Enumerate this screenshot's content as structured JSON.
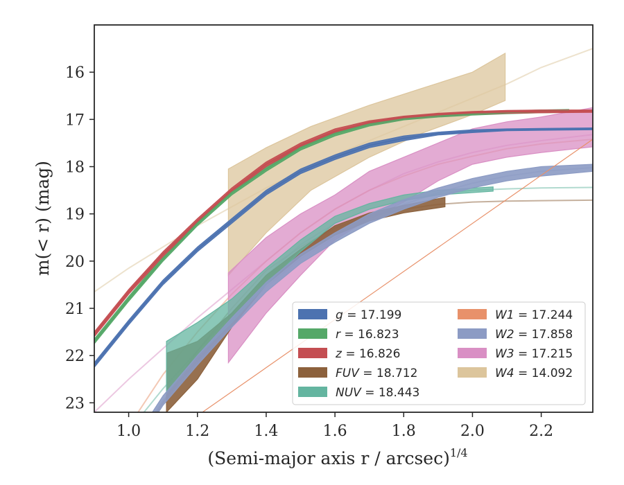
{
  "chart_data": {
    "type": "line",
    "title": "",
    "xlabel": "(Semi-major axis r / arcsec)",
    "xlabel_exponent": "1/4",
    "ylabel": "m(< r) (mag)",
    "xlim": [
      0.9,
      2.35
    ],
    "ylim": [
      23.2,
      15.0
    ],
    "y_inverted": true,
    "x_ticks": [
      "1.0",
      "1.2",
      "1.4",
      "1.6",
      "1.8",
      "2.0",
      "2.2"
    ],
    "y_ticks": [
      "16",
      "17",
      "18",
      "19",
      "20",
      "21",
      "22",
      "23"
    ],
    "grid": false,
    "legend_placement": "lower-right",
    "legend_columns": 2,
    "series": [
      {
        "name": "g",
        "label_value": "= 17.199",
        "color": "#4c72b0",
        "model": {
          "x": [
            0.9,
            1.0,
            1.1,
            1.2,
            1.3,
            1.4,
            1.5,
            1.6,
            1.7,
            1.8,
            1.9,
            2.0,
            2.1,
            2.2,
            2.35
          ],
          "y": [
            22.2,
            21.3,
            20.45,
            19.75,
            19.15,
            18.55,
            18.1,
            17.8,
            17.55,
            17.4,
            17.3,
            17.25,
            17.22,
            17.21,
            17.2
          ]
        },
        "band": {
          "x": [
            0.9,
            1.0,
            1.1,
            1.2,
            1.3,
            1.4,
            1.5,
            1.6,
            1.7,
            1.8,
            1.9,
            2.0,
            2.1,
            2.2,
            2.35
          ],
          "lo": [
            22.15,
            21.25,
            20.4,
            19.7,
            19.1,
            18.5,
            18.05,
            17.75,
            17.5,
            17.35,
            17.27,
            17.22,
            17.2,
            17.19,
            17.18
          ],
          "hi": [
            22.25,
            21.35,
            20.5,
            19.8,
            19.2,
            18.6,
            18.15,
            17.85,
            17.6,
            17.45,
            17.33,
            17.28,
            17.24,
            17.23,
            17.22
          ]
        }
      },
      {
        "name": "r",
        "label_value": "= 16.823",
        "color": "#55a868",
        "model": {
          "x": [
            0.9,
            1.0,
            1.1,
            1.2,
            1.3,
            1.4,
            1.5,
            1.6,
            1.7,
            1.8,
            1.9,
            2.0,
            2.1,
            2.2,
            2.28
          ],
          "y": [
            21.7,
            20.8,
            19.95,
            19.2,
            18.55,
            18.05,
            17.6,
            17.3,
            17.1,
            16.98,
            16.92,
            16.88,
            16.85,
            16.83,
            16.82
          ]
        },
        "band": {
          "x": [
            0.9,
            1.0,
            1.1,
            1.2,
            1.3,
            1.4,
            1.5,
            1.6,
            1.7,
            1.8,
            1.9,
            2.0,
            2.1,
            2.2,
            2.28
          ],
          "lo": [
            21.65,
            20.75,
            19.9,
            19.15,
            18.5,
            18.0,
            17.55,
            17.25,
            17.06,
            16.95,
            16.89,
            16.85,
            16.82,
            16.8,
            16.79
          ],
          "hi": [
            21.75,
            20.85,
            20.0,
            19.25,
            18.6,
            18.1,
            17.65,
            17.35,
            17.14,
            17.01,
            16.95,
            16.91,
            16.88,
            16.86,
            16.85
          ]
        }
      },
      {
        "name": "z",
        "label_value": "= 16.826",
        "color": "#c44e52",
        "model": {
          "x": [
            0.9,
            1.0,
            1.1,
            1.2,
            1.3,
            1.4,
            1.5,
            1.6,
            1.7,
            1.8,
            1.9,
            2.0,
            2.1,
            2.2,
            2.35
          ],
          "y": [
            21.55,
            20.65,
            19.85,
            19.15,
            18.5,
            17.95,
            17.55,
            17.25,
            17.07,
            16.96,
            16.9,
            16.86,
            16.84,
            16.83,
            16.82
          ]
        },
        "band": {
          "x": [
            0.9,
            1.0,
            1.1,
            1.2,
            1.3,
            1.4,
            1.5,
            1.6,
            1.7,
            1.8,
            1.9,
            2.0,
            2.1,
            2.2,
            2.35
          ],
          "lo": [
            21.5,
            20.6,
            19.8,
            19.1,
            18.45,
            17.9,
            17.5,
            17.2,
            17.03,
            16.93,
            16.87,
            16.83,
            16.81,
            16.8,
            16.8
          ],
          "hi": [
            21.6,
            20.7,
            19.9,
            19.2,
            18.55,
            18.0,
            17.6,
            17.3,
            17.11,
            16.99,
            16.93,
            16.89,
            16.87,
            16.86,
            16.85
          ]
        }
      },
      {
        "name": "FUV",
        "label_value": "= 18.712",
        "color": "#8c613c",
        "model": {
          "x": [
            0.9,
            1.0,
            1.1,
            1.2,
            1.3,
            1.4,
            1.5,
            1.6,
            1.7,
            1.8,
            1.9,
            2.0,
            2.1,
            2.2,
            2.35
          ],
          "y": [
            25.0,
            24.1,
            23.0,
            21.9,
            21.0,
            20.2,
            19.7,
            19.3,
            19.05,
            18.9,
            18.8,
            18.75,
            18.73,
            18.72,
            18.71
          ]
        },
        "band": {
          "x": [
            1.11,
            1.2,
            1.3,
            1.4,
            1.5,
            1.6,
            1.7,
            1.8,
            1.92
          ],
          "lo": [
            21.95,
            21.7,
            21.1,
            20.3,
            19.75,
            19.25,
            18.98,
            18.82,
            18.65
          ],
          "hi": [
            23.2,
            22.5,
            21.4,
            20.5,
            19.9,
            19.45,
            19.15,
            18.98,
            18.85
          ]
        }
      },
      {
        "name": "NUV",
        "label_value": "= 18.443",
        "color": "#64b5a0",
        "model": {
          "x": [
            0.9,
            1.0,
            1.1,
            1.2,
            1.3,
            1.4,
            1.5,
            1.6,
            1.7,
            1.8,
            1.9,
            2.0,
            2.1,
            2.2,
            2.35
          ],
          "y": [
            24.5,
            23.6,
            22.7,
            21.9,
            21.1,
            20.3,
            19.65,
            19.2,
            18.9,
            18.7,
            18.58,
            18.5,
            18.47,
            18.45,
            18.44
          ]
        },
        "band": {
          "x": [
            1.11,
            1.2,
            1.3,
            1.4,
            1.5,
            1.6,
            1.7,
            1.8,
            1.9,
            2.06
          ],
          "lo": [
            21.7,
            21.3,
            20.8,
            20.15,
            19.55,
            19.05,
            18.78,
            18.6,
            18.5,
            18.43
          ],
          "hi": [
            22.8,
            22.0,
            21.3,
            20.5,
            19.8,
            19.2,
            18.9,
            18.72,
            18.6,
            18.52
          ]
        }
      },
      {
        "name": "W1",
        "label_value": "= 17.244",
        "color": "#e8916a",
        "model": {
          "x": [
            0.9,
            1.0,
            1.1,
            1.2,
            1.3,
            1.4,
            1.5,
            1.6,
            1.7,
            1.8,
            1.9,
            2.0,
            2.1,
            2.2,
            2.35
          ],
          "y": [
            24.8,
            23.5,
            22.4,
            21.5,
            20.7,
            20.0,
            19.4,
            18.9,
            18.5,
            18.2,
            17.95,
            17.78,
            17.62,
            17.52,
            17.42
          ]
        },
        "band": {
          "x": [
            0.9,
            2.35
          ],
          "lo": [
            24.8,
            17.42
          ],
          "hi": [
            24.8,
            17.42
          ]
        }
      },
      {
        "name": "W2",
        "label_value": "= 17.858",
        "color": "#8c9bc4",
        "model": {
          "x": [
            1.06,
            1.1,
            1.2,
            1.3,
            1.4,
            1.5,
            1.6,
            1.7,
            1.8,
            1.9,
            2.0,
            2.1,
            2.2,
            2.35
          ],
          "y": [
            23.4,
            22.95,
            22.1,
            21.3,
            20.55,
            19.95,
            19.5,
            19.1,
            18.8,
            18.55,
            18.35,
            18.2,
            18.1,
            18.02
          ]
        },
        "band": {
          "x": [
            1.06,
            1.1,
            1.2,
            1.3,
            1.4,
            1.5,
            1.6,
            1.7,
            1.8,
            1.9,
            2.0,
            2.1,
            2.2,
            2.35
          ],
          "lo": [
            23.3,
            22.85,
            22.0,
            21.2,
            20.45,
            19.85,
            19.4,
            19.0,
            18.7,
            18.45,
            18.25,
            18.1,
            18.0,
            17.95
          ],
          "hi": [
            23.5,
            23.05,
            22.2,
            21.4,
            20.65,
            20.05,
            19.6,
            19.2,
            18.9,
            18.65,
            18.45,
            18.3,
            18.2,
            18.1
          ]
        }
      },
      {
        "name": "W3",
        "label_value": "= 17.215",
        "color": "#d98fc4",
        "model": {
          "x": [
            0.9,
            1.0,
            1.1,
            1.2,
            1.3,
            1.4,
            1.5,
            1.6,
            1.7,
            1.8,
            1.9,
            2.0,
            2.1,
            2.2,
            2.35
          ],
          "y": [
            23.2,
            22.5,
            21.85,
            21.2,
            20.6,
            20.0,
            19.4,
            18.9,
            18.5,
            18.15,
            17.9,
            17.7,
            17.55,
            17.45,
            17.32
          ]
        },
        "band": {
          "x": [
            1.29,
            1.4,
            1.5,
            1.6,
            1.7,
            1.8,
            1.9,
            2.0,
            2.1,
            2.2,
            2.35
          ],
          "lo": [
            20.25,
            19.5,
            19.0,
            18.6,
            18.1,
            17.8,
            17.5,
            17.2,
            17.05,
            16.95,
            16.75
          ],
          "hi": [
            22.15,
            21.1,
            20.3,
            19.55,
            19.1,
            18.75,
            18.3,
            17.95,
            17.8,
            17.7,
            17.58
          ]
        }
      },
      {
        "name": "W4",
        "label_value": "= 14.092",
        "color": "#dcc59c",
        "model": {
          "x": [
            0.9,
            1.0,
            1.1,
            1.2,
            1.3,
            1.4,
            1.5,
            1.6,
            1.7,
            1.8,
            1.9,
            2.0,
            2.1,
            2.2,
            2.35
          ],
          "y": [
            20.65,
            20.15,
            19.7,
            19.25,
            18.85,
            18.45,
            18.1,
            17.75,
            17.45,
            17.15,
            16.85,
            16.55,
            16.25,
            15.9,
            15.5
          ]
        },
        "band": {
          "x": [
            1.29,
            1.4,
            1.53,
            1.7,
            1.85,
            2.0,
            2.095
          ],
          "lo": [
            18.05,
            17.6,
            17.15,
            16.7,
            16.35,
            16.0,
            15.6
          ],
          "hi": [
            20.3,
            19.4,
            18.5,
            17.8,
            17.3,
            16.9,
            16.6
          ]
        }
      }
    ]
  }
}
